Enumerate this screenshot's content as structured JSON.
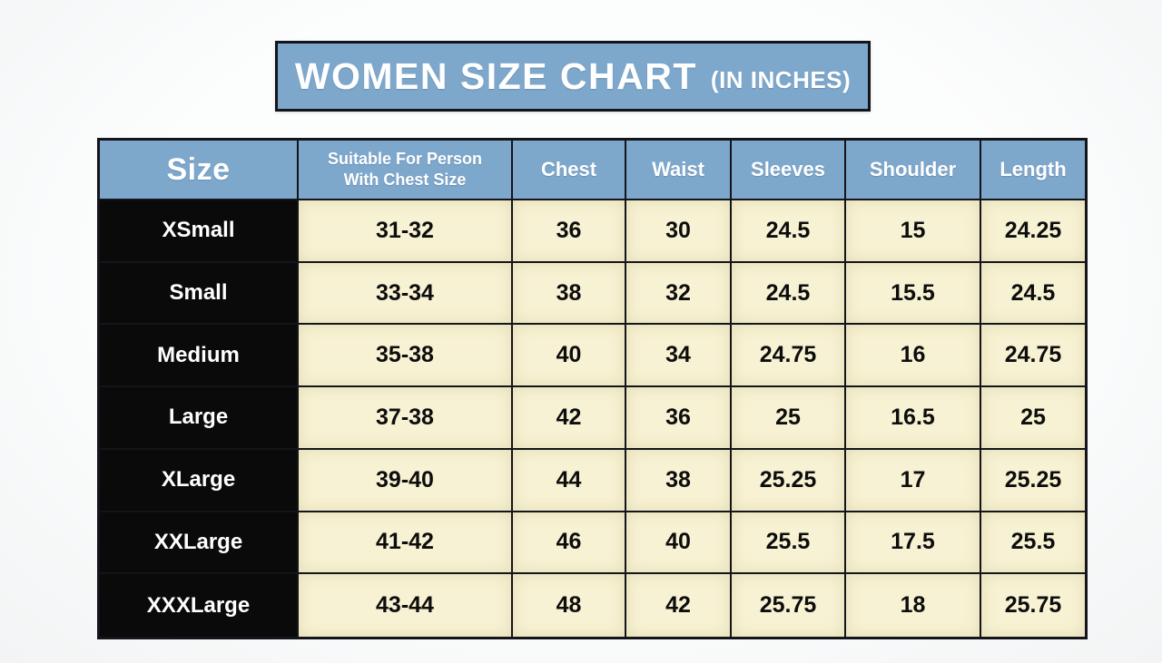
{
  "banner": {
    "title": "WOMEN SIZE CHART",
    "subtitle": "(IN INCHES)"
  },
  "chart_data": {
    "type": "table",
    "title": "WOMEN SIZE CHART (IN INCHES)",
    "units": "inches",
    "columns": [
      "Size",
      "Suitable For Person With Chest Size",
      "Chest",
      "Waist",
      "Sleeves",
      "Shoulder",
      "Length"
    ],
    "rows": [
      [
        "XSmall",
        "31-32",
        "36",
        "30",
        "24.5",
        "15",
        "24.25"
      ],
      [
        "Small",
        "33-34",
        "38",
        "32",
        "24.5",
        "15.5",
        "24.5"
      ],
      [
        "Medium",
        "35-38",
        "40",
        "34",
        "24.75",
        "16",
        "24.75"
      ],
      [
        "Large",
        "37-38",
        "42",
        "36",
        "25",
        "16.5",
        "25"
      ],
      [
        "XLarge",
        "39-40",
        "44",
        "38",
        "25.25",
        "17",
        "25.25"
      ],
      [
        "XXLarge",
        "41-42",
        "46",
        "40",
        "25.5",
        "17.5",
        "25.5"
      ],
      [
        "XXXLarge",
        "43-44",
        "48",
        "42",
        "25.75",
        "18",
        "25.75"
      ]
    ]
  },
  "colors": {
    "header_bg": "#7ea7cc",
    "header_text": "#ffffff",
    "size_cell_bg": "#0a0a0a",
    "size_cell_text": "#ffffff",
    "value_cell_bg": "#f7f2d3",
    "value_cell_text": "#0d0d0d",
    "border": "#14141b"
  }
}
